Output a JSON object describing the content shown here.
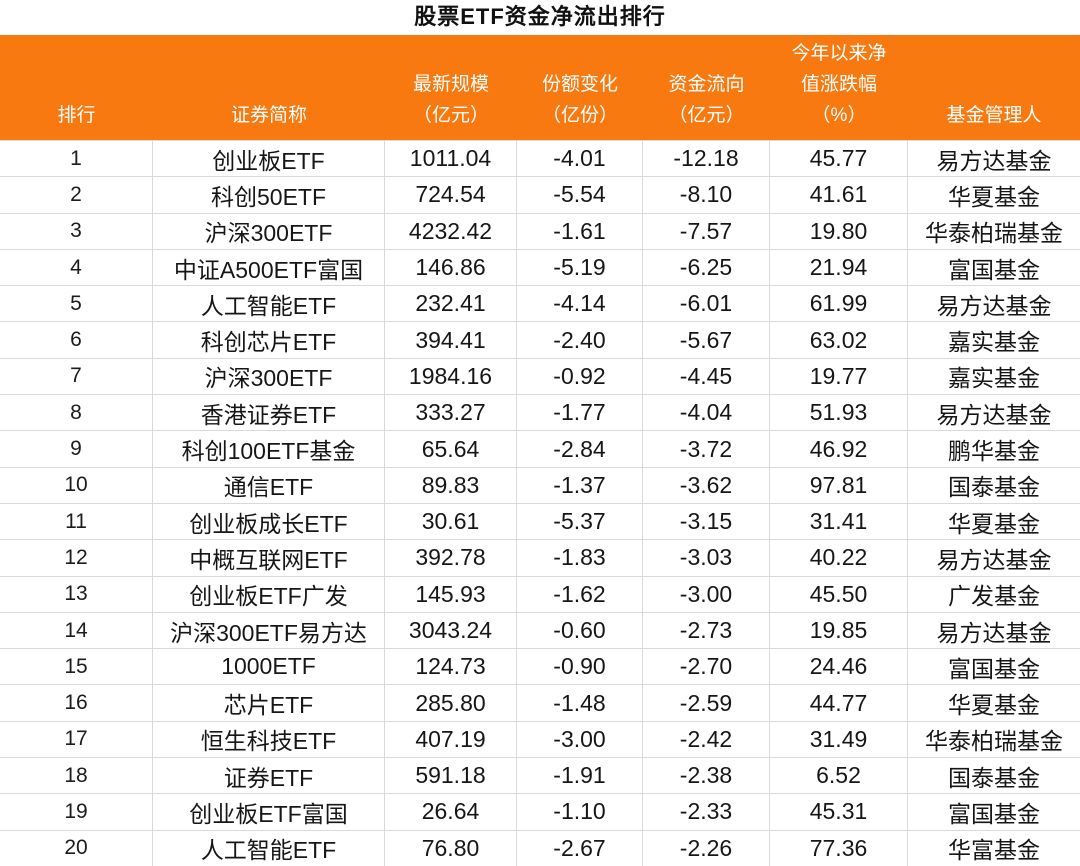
{
  "title": "股票ETF资金净流出排行",
  "colors": {
    "header_bg": "#F8790F",
    "header_text": "#FFFFFF",
    "row_border": "#D9D9D9",
    "title_text": "#111111",
    "cell_text": "#161616"
  },
  "chart_data": {
    "type": "table",
    "title": "股票ETF资金净流出排行",
    "columns": [
      {
        "key": "rank",
        "label": "排行",
        "header_lines": [
          "排行"
        ]
      },
      {
        "key": "name",
        "label": "证券简称",
        "header_lines": [
          "证券简称"
        ]
      },
      {
        "key": "scale",
        "label": "最新规模（亿元）",
        "header_lines": [
          "最新规模",
          "（亿元）"
        ]
      },
      {
        "key": "share_change",
        "label": "份额变化（亿份）",
        "header_lines": [
          "份额变化",
          "（亿份）"
        ]
      },
      {
        "key": "flow",
        "label": "资金流向（亿元）",
        "header_lines": [
          "资金流向",
          "（亿元）"
        ]
      },
      {
        "key": "ytd_change",
        "label": "今年以来净值涨跌幅（%）",
        "header_lines": [
          "今年以来净",
          "值涨跌幅",
          "（%）"
        ]
      },
      {
        "key": "manager",
        "label": "基金管理人",
        "header_lines": [
          "基金管理人"
        ]
      }
    ],
    "rows": [
      [
        "1",
        "创业板ETF",
        "1011.04",
        "-4.01",
        "-12.18",
        "45.77",
        "易方达基金"
      ],
      [
        "2",
        "科创50ETF",
        "724.54",
        "-5.54",
        "-8.10",
        "41.61",
        "华夏基金"
      ],
      [
        "3",
        "沪深300ETF",
        "4232.42",
        "-1.61",
        "-7.57",
        "19.80",
        "华泰柏瑞基金"
      ],
      [
        "4",
        "中证A500ETF富国",
        "146.86",
        "-5.19",
        "-6.25",
        "21.94",
        "富国基金"
      ],
      [
        "5",
        "人工智能ETF",
        "232.41",
        "-4.14",
        "-6.01",
        "61.99",
        "易方达基金"
      ],
      [
        "6",
        "科创芯片ETF",
        "394.41",
        "-2.40",
        "-5.67",
        "63.02",
        "嘉实基金"
      ],
      [
        "7",
        "沪深300ETF",
        "1984.16",
        "-0.92",
        "-4.45",
        "19.77",
        "嘉实基金"
      ],
      [
        "8",
        "香港证券ETF",
        "333.27",
        "-1.77",
        "-4.04",
        "51.93",
        "易方达基金"
      ],
      [
        "9",
        "科创100ETF基金",
        "65.64",
        "-2.84",
        "-3.72",
        "46.92",
        "鹏华基金"
      ],
      [
        "10",
        "通信ETF",
        "89.83",
        "-1.37",
        "-3.62",
        "97.81",
        "国泰基金"
      ],
      [
        "11",
        "创业板成长ETF",
        "30.61",
        "-5.37",
        "-3.15",
        "31.41",
        "华夏基金"
      ],
      [
        "12",
        "中概互联网ETF",
        "392.78",
        "-1.83",
        "-3.03",
        "40.22",
        "易方达基金"
      ],
      [
        "13",
        "创业板ETF广发",
        "145.93",
        "-1.62",
        "-3.00",
        "45.50",
        "广发基金"
      ],
      [
        "14",
        "沪深300ETF易方达",
        "3043.24",
        "-0.60",
        "-2.73",
        "19.85",
        "易方达基金"
      ],
      [
        "15",
        "1000ETF",
        "124.73",
        "-0.90",
        "-2.70",
        "24.46",
        "富国基金"
      ],
      [
        "16",
        "芯片ETF",
        "285.80",
        "-1.48",
        "-2.59",
        "44.77",
        "华夏基金"
      ],
      [
        "17",
        "恒生科技ETF",
        "407.19",
        "-3.00",
        "-2.42",
        "31.49",
        "华泰柏瑞基金"
      ],
      [
        "18",
        "证券ETF",
        "591.18",
        "-1.91",
        "-2.38",
        "6.52",
        "国泰基金"
      ],
      [
        "19",
        "创业板ETF富国",
        "26.64",
        "-1.10",
        "-2.33",
        "45.31",
        "富国基金"
      ],
      [
        "20",
        "人工智能ETF",
        "76.80",
        "-2.67",
        "-2.26",
        "77.36",
        "华富基金"
      ]
    ]
  }
}
